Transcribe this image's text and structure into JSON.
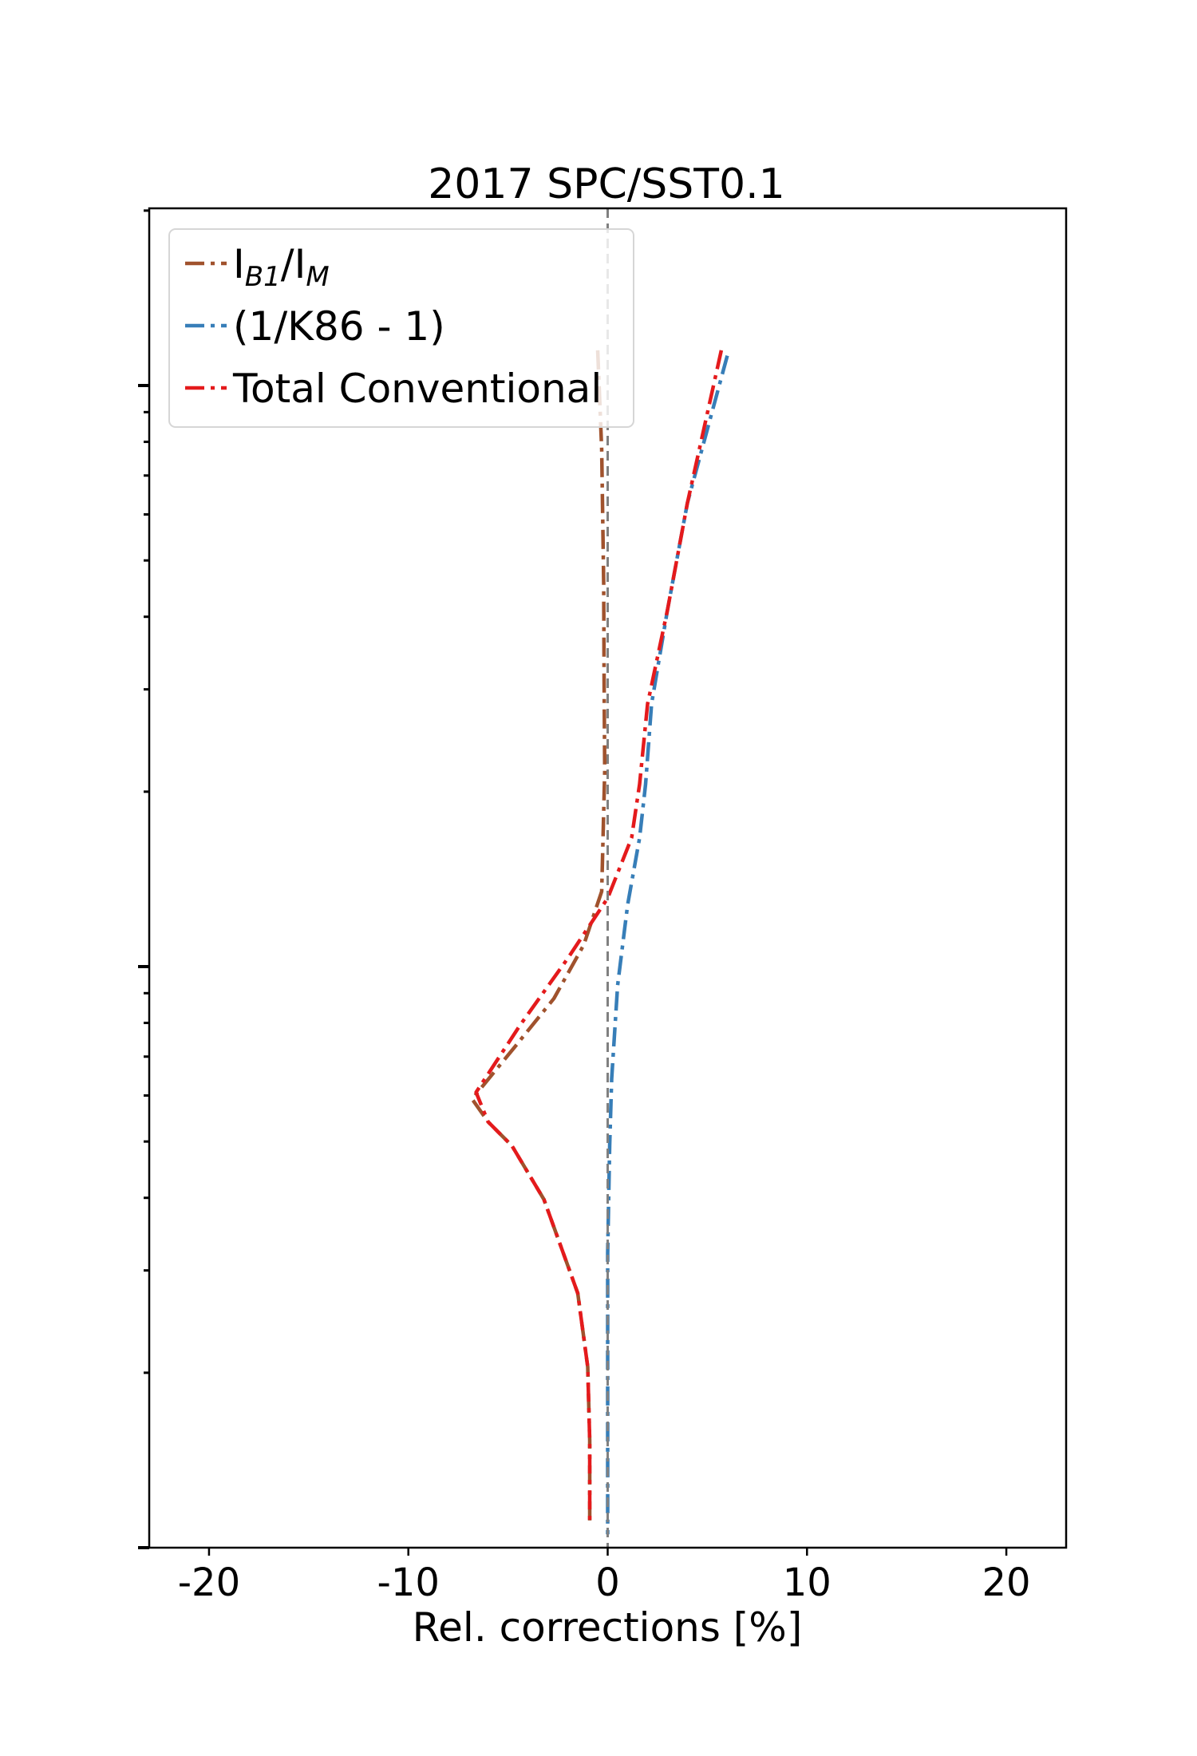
{
  "chart_data": {
    "type": "line",
    "title": "2017 SPC/SST0.1",
    "xlabel": "Rel. corrections [%]",
    "ylabel": "",
    "xlim": [
      -23,
      23
    ],
    "ylim": [
      0,
      1
    ],
    "x_ticks": [
      -20,
      -10,
      0,
      10,
      20
    ],
    "x_tick_labels": [
      "-20",
      "-10",
      "0",
      "10",
      "20"
    ],
    "y_scale": "log",
    "y_tick_labels_shown": false,
    "grid": false,
    "legend_position": "upper-left",
    "reference_line": {
      "x": 0,
      "style": "dashed",
      "color": "#808080"
    },
    "series": [
      {
        "name": "I_B1/I_M",
        "legend_main": "I",
        "legend_sub1": "B1",
        "legend_slash": "/I",
        "legend_sub2": "M",
        "color": "#a0522d",
        "dash": "dashdot",
        "points": [
          [
            -0.5,
            0.894
          ],
          [
            -0.3,
            0.82
          ],
          [
            -0.2,
            0.72
          ],
          [
            -0.18,
            0.65
          ],
          [
            -0.15,
            0.58
          ],
          [
            -0.3,
            0.49
          ],
          [
            -1.2,
            0.45
          ],
          [
            -2.7,
            0.41
          ],
          [
            -4.6,
            0.375
          ],
          [
            -6.8,
            0.335
          ],
          [
            -6.0,
            0.318
          ],
          [
            -4.8,
            0.3
          ],
          [
            -3.2,
            0.26
          ],
          [
            -1.5,
            0.19
          ],
          [
            -1.0,
            0.135
          ],
          [
            -0.9,
            0.08
          ],
          [
            -0.9,
            0.02
          ]
        ]
      },
      {
        "name": "(1/K86 - 1)",
        "legend_label": "(1/K86 - 1)",
        "color": "#377eb8",
        "dash": "dashdot",
        "points": [
          [
            6.0,
            0.89
          ],
          [
            4.0,
            0.78
          ],
          [
            3.0,
            0.7
          ],
          [
            2.2,
            0.63
          ],
          [
            1.9,
            0.57
          ],
          [
            1.6,
            0.53
          ],
          [
            1.0,
            0.48
          ],
          [
            0.5,
            0.42
          ],
          [
            0.2,
            0.35
          ],
          [
            0.1,
            0.3
          ],
          [
            0.0,
            0.22
          ],
          [
            0.0,
            0.1
          ],
          [
            0.0,
            0.01
          ]
        ]
      },
      {
        "name": "Total Conventional",
        "legend_label": "Total Conventional",
        "color": "#e41a1c",
        "dash": "dashdot",
        "points": [
          [
            5.7,
            0.894
          ],
          [
            4.0,
            0.78
          ],
          [
            3.0,
            0.7
          ],
          [
            2.0,
            0.63
          ],
          [
            1.6,
            0.57
          ],
          [
            1.2,
            0.53
          ],
          [
            0.0,
            0.485
          ],
          [
            -2.0,
            0.44
          ],
          [
            -4.4,
            0.39
          ],
          [
            -6.6,
            0.34
          ],
          [
            -6.0,
            0.318
          ],
          [
            -4.8,
            0.3
          ],
          [
            -3.2,
            0.26
          ],
          [
            -1.5,
            0.19
          ],
          [
            -1.0,
            0.135
          ],
          [
            -0.9,
            0.08
          ],
          [
            -0.9,
            0.02
          ]
        ]
      }
    ]
  }
}
